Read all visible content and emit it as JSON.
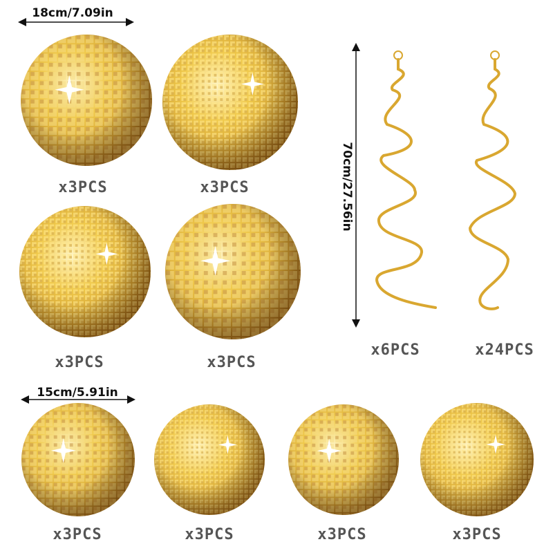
{
  "dimensions": {
    "large_ball": "18cm/7.09in",
    "swirl": "70cm/27.56in",
    "small_ball": "15cm/5.91in"
  },
  "quantities": [
    "x3PCS",
    "x3PCS",
    "x3PCS",
    "x3PCS",
    "x6PCS",
    "x24PCS",
    "x3PCS",
    "x3PCS",
    "x3PCS",
    "x3PCS"
  ]
}
